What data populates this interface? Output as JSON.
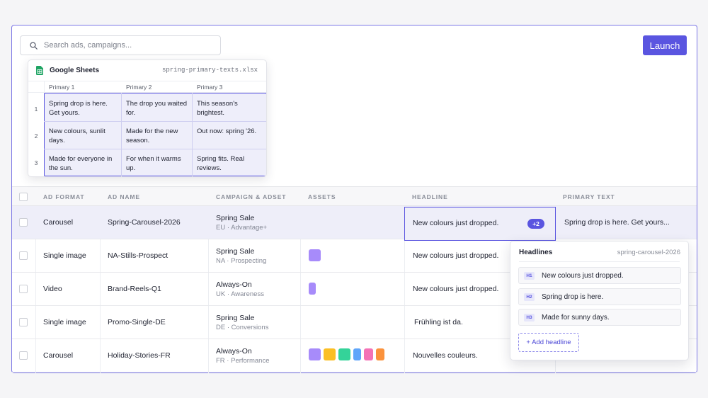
{
  "search": {
    "placeholder": "Search ads, campaigns..."
  },
  "launch_label": "Launch",
  "sheets": {
    "title": "Google Sheets",
    "file": "spring-primary-texts.xlsx",
    "columns": [
      "Primary 1",
      "Primary 2",
      "Primary 3"
    ],
    "row_numbers": [
      "1",
      "2",
      "3"
    ],
    "cells": [
      [
        "Spring drop is here. Get yours.",
        "The drop you waited for.",
        "This season's brightest."
      ],
      [
        "New colours, sunlit days.",
        "Made for the new season.",
        "Out now: spring '26."
      ],
      [
        "Made for everyone in the sun.",
        "For when it warms up.",
        "Spring fits. Real reviews."
      ]
    ]
  },
  "table": {
    "headers": [
      "AD FORMAT",
      "AD NAME",
      "CAMPAIGN & ADSET",
      "ASSETS",
      "HEADLINE",
      "PRIMARY TEXT"
    ],
    "rows": [
      {
        "format": "Carousel",
        "name": "Spring-Carousel-2026",
        "campaign": "Spring Sale",
        "adset": "EU · Advantage+",
        "headline": "New colours just dropped.",
        "headline_extra": "+2",
        "primary": "Spring drop is here. Get yours..."
      },
      {
        "format": "Single image",
        "name": "NA-Stills-Prospect",
        "campaign": "Spring Sale",
        "adset": "NA · Prospecting",
        "headline": "New colours just dropped.",
        "primary": ""
      },
      {
        "format": "Video",
        "name": "Brand-Reels-Q1",
        "campaign": "Always-On",
        "adset": "UK · Awareness",
        "headline": "New colours just dropped.",
        "primary": ""
      },
      {
        "format": "Single image",
        "name": "Promo-Single-DE",
        "campaign": "Spring Sale",
        "adset": "DE · Conversions",
        "headline": "Frühling ist da.",
        "primary": ""
      },
      {
        "format": "Carousel",
        "name": "Holiday-Stories-FR",
        "campaign": "Always-On",
        "adset": "FR · Performance",
        "headline": "Nouvelles couleurs.",
        "primary": ""
      }
    ]
  },
  "asset_colors": [
    "#a78bfa",
    "#fbbf24",
    "#34d399",
    "#60a5fa",
    "#f472b6",
    "#fb923c"
  ],
  "headlines_popup": {
    "title": "Headlines",
    "file": "spring-carousel-2026",
    "items": [
      {
        "tag": "H1",
        "text": "New colours just dropped."
      },
      {
        "tag": "H2",
        "text": "Spring drop is here."
      },
      {
        "tag": "H3",
        "text": "Made for sunny days."
      }
    ],
    "add_label": "+ Add headline"
  }
}
